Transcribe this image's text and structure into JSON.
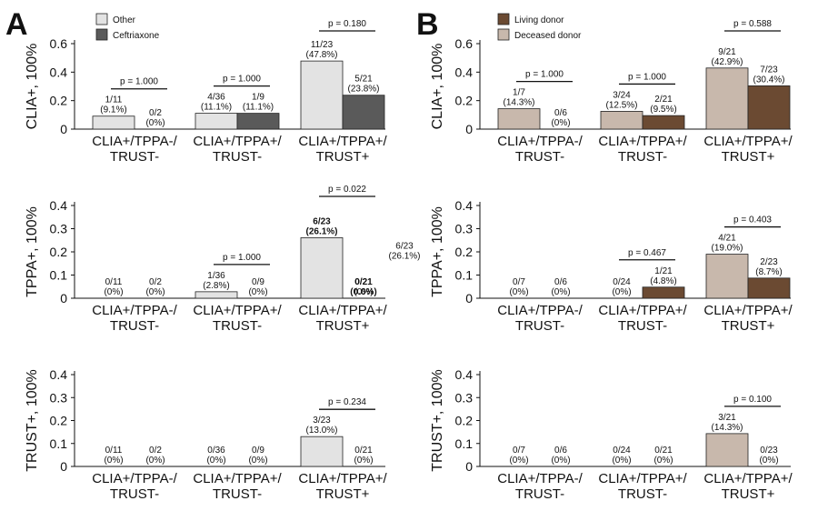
{
  "figure": {
    "panel_letters": [
      "A",
      "B"
    ],
    "legends": [
      {
        "items": [
          {
            "label": "Other",
            "color": "#e3e3e3"
          },
          {
            "label": "Ceftriaxone",
            "color": "#5a5a5a"
          }
        ]
      },
      {
        "items": [
          {
            "label": "Living donor",
            "color": "#6b4a32"
          },
          {
            "label": "Deceased donor",
            "color": "#c8b8ac"
          }
        ]
      }
    ],
    "colors": {
      "other": "#e3e3e3",
      "ceftriaxone": "#5a5a5a",
      "living_donor": "#6b4a32",
      "deceased_donor": "#c8b8ac",
      "outline": "#222222"
    }
  },
  "chart_data": [
    {
      "type": "bar",
      "panel": "A",
      "ylabel": "CLIA+, 100%",
      "ylim": [
        0,
        0.6
      ],
      "yticks": [
        "0",
        "0.2",
        "0.4",
        "0.6"
      ],
      "categories": [
        "CLIA+/TPPA-/\nTRUST-",
        "CLIA+/TPPA+/\nTRUST-",
        "CLIA+/TPPA+/\nTRUST+"
      ],
      "series": [
        {
          "name": "Other",
          "values": [
            0.091,
            0.111,
            0.478
          ],
          "labels": [
            "1/11\n(9.1%)",
            "4/36\n(11.1%)",
            "11/23\n(47.8%)"
          ]
        },
        {
          "name": "Ceftriaxone",
          "values": [
            0,
            0.111,
            0.238
          ],
          "labels": [
            "0/2\n(0%)",
            "1/9\n(11.1%)",
            "5/21\n(23.8%)"
          ]
        }
      ],
      "pvalues": [
        "p = 1.000",
        "p = 1.000",
        "p = 0.180"
      ]
    },
    {
      "type": "bar",
      "panel": "A",
      "ylabel": "TPPA+, 100%",
      "ylim": [
        0,
        0.4
      ],
      "yticks": [
        "0",
        "0.1",
        "0.2",
        "0.3",
        "0.4"
      ],
      "categories": [
        "CLIA+/TPPA-/\nTRUST-",
        "CLIA+/TPPA+/\nTRUST-",
        "CLIA+/TPPA+/\nTRUST+"
      ],
      "series": [
        {
          "name": "Other",
          "values": [
            0,
            0.028,
            0.261
          ],
          "labels": [
            "0/11\n(0%)",
            "1/36\n(2.8%)",
            "6/23\n(26.1%)"
          ]
        },
        {
          "name": "Ceftriaxone",
          "values": [
            0,
            0,
            0
          ],
          "labels": [
            "0/2\n(0%)",
            "0/9\n(0%)",
            "0/21\n(0%)"
          ]
        }
      ],
      "pvalues": [
        "",
        "p = 1.000",
        "p = 0.022"
      ],
      "annotations": [
        "6/23\n(26.1%)",
        "0/21\n(0.0%)"
      ]
    },
    {
      "type": "bar",
      "panel": "A",
      "ylabel": "TRUST+, 100%",
      "ylim": [
        0,
        0.4
      ],
      "yticks": [
        "0",
        "0.1",
        "0.2",
        "0.3",
        "0.4"
      ],
      "categories": [
        "CLIA+/TPPA-/\nTRUST-",
        "CLIA+/TPPA+/\nTRUST-",
        "CLIA+/TPPA+/\nTRUST+"
      ],
      "series": [
        {
          "name": "Other",
          "values": [
            0,
            0,
            0.13
          ],
          "labels": [
            "0/11\n(0%)",
            "0/36\n(0%)",
            "3/23\n(13.0%)"
          ]
        },
        {
          "name": "Ceftriaxone",
          "values": [
            0,
            0,
            0
          ],
          "labels": [
            "0/2\n(0%)",
            "0/9\n(0%)",
            "0/21\n(0%)"
          ]
        }
      ],
      "pvalues": [
        "",
        "",
        "p = 0.234"
      ]
    },
    {
      "type": "bar",
      "panel": "B",
      "ylabel": "CLIA+, 100%",
      "ylim": [
        0,
        0.6
      ],
      "yticks": [
        "0",
        "0.2",
        "0.4",
        "0.6"
      ],
      "categories": [
        "CLIA+/TPPA-/\nTRUST-",
        "CLIA+/TPPA+/\nTRUST-",
        "CLIA+/TPPA+/\nTRUST+"
      ],
      "series": [
        {
          "name": "Deceased donor",
          "values": [
            0.143,
            0.125,
            0.429
          ],
          "labels": [
            "1/7\n(14.3%)",
            "3/24\n(12.5%)",
            "9/21\n(42.9%)"
          ]
        },
        {
          "name": "Living donor",
          "values": [
            0,
            0.095,
            0.304
          ],
          "labels": [
            "0/6\n(0%)",
            "2/21\n(9.5%)",
            "7/23\n(30.4%)"
          ]
        }
      ],
      "pvalues": [
        "p = 1.000",
        "p = 1.000",
        "p = 0.588"
      ]
    },
    {
      "type": "bar",
      "panel": "B",
      "ylabel": "TPPA+, 100%",
      "ylim": [
        0,
        0.4
      ],
      "yticks": [
        "0",
        "0.1",
        "0.2",
        "0.3",
        "0.4"
      ],
      "categories": [
        "CLIA+/TPPA-/\nTRUST-",
        "CLIA+/TPPA+/\nTRUST-",
        "CLIA+/TPPA+/\nTRUST+"
      ],
      "series": [
        {
          "name": "Deceased donor",
          "values": [
            0,
            0,
            0.19
          ],
          "labels": [
            "0/7\n(0%)",
            "0/24\n(0%)",
            "4/21\n(19.0%)"
          ]
        },
        {
          "name": "Living donor",
          "values": [
            0,
            0.048,
            0.087
          ],
          "labels": [
            "0/6\n(0%)",
            "1/21\n(4.8%)",
            "2/23\n(8.7%)"
          ]
        }
      ],
      "pvalues": [
        "",
        "p = 0.467",
        "p = 0.403"
      ]
    },
    {
      "type": "bar",
      "panel": "B",
      "ylabel": "TRUST+, 100%",
      "ylim": [
        0,
        0.4
      ],
      "yticks": [
        "0",
        "0.1",
        "0.2",
        "0.3",
        "0.4"
      ],
      "categories": [
        "CLIA+/TPPA-/\nTRUST-",
        "CLIA+/TPPA+/\nTRUST-",
        "CLIA+/TPPA+/\nTRUST+"
      ],
      "series": [
        {
          "name": "Deceased donor",
          "values": [
            0,
            0,
            0.143
          ],
          "labels": [
            "0/7\n(0%)",
            "0/24\n(0%)",
            "3/21\n(14.3%)"
          ]
        },
        {
          "name": "Living donor",
          "values": [
            0,
            0,
            0
          ],
          "labels": [
            "0/6\n(0%)",
            "0/21\n(0%)",
            "0/23\n(0%)"
          ]
        }
      ],
      "pvalues": [
        "",
        "",
        "p = 0.100"
      ]
    }
  ]
}
